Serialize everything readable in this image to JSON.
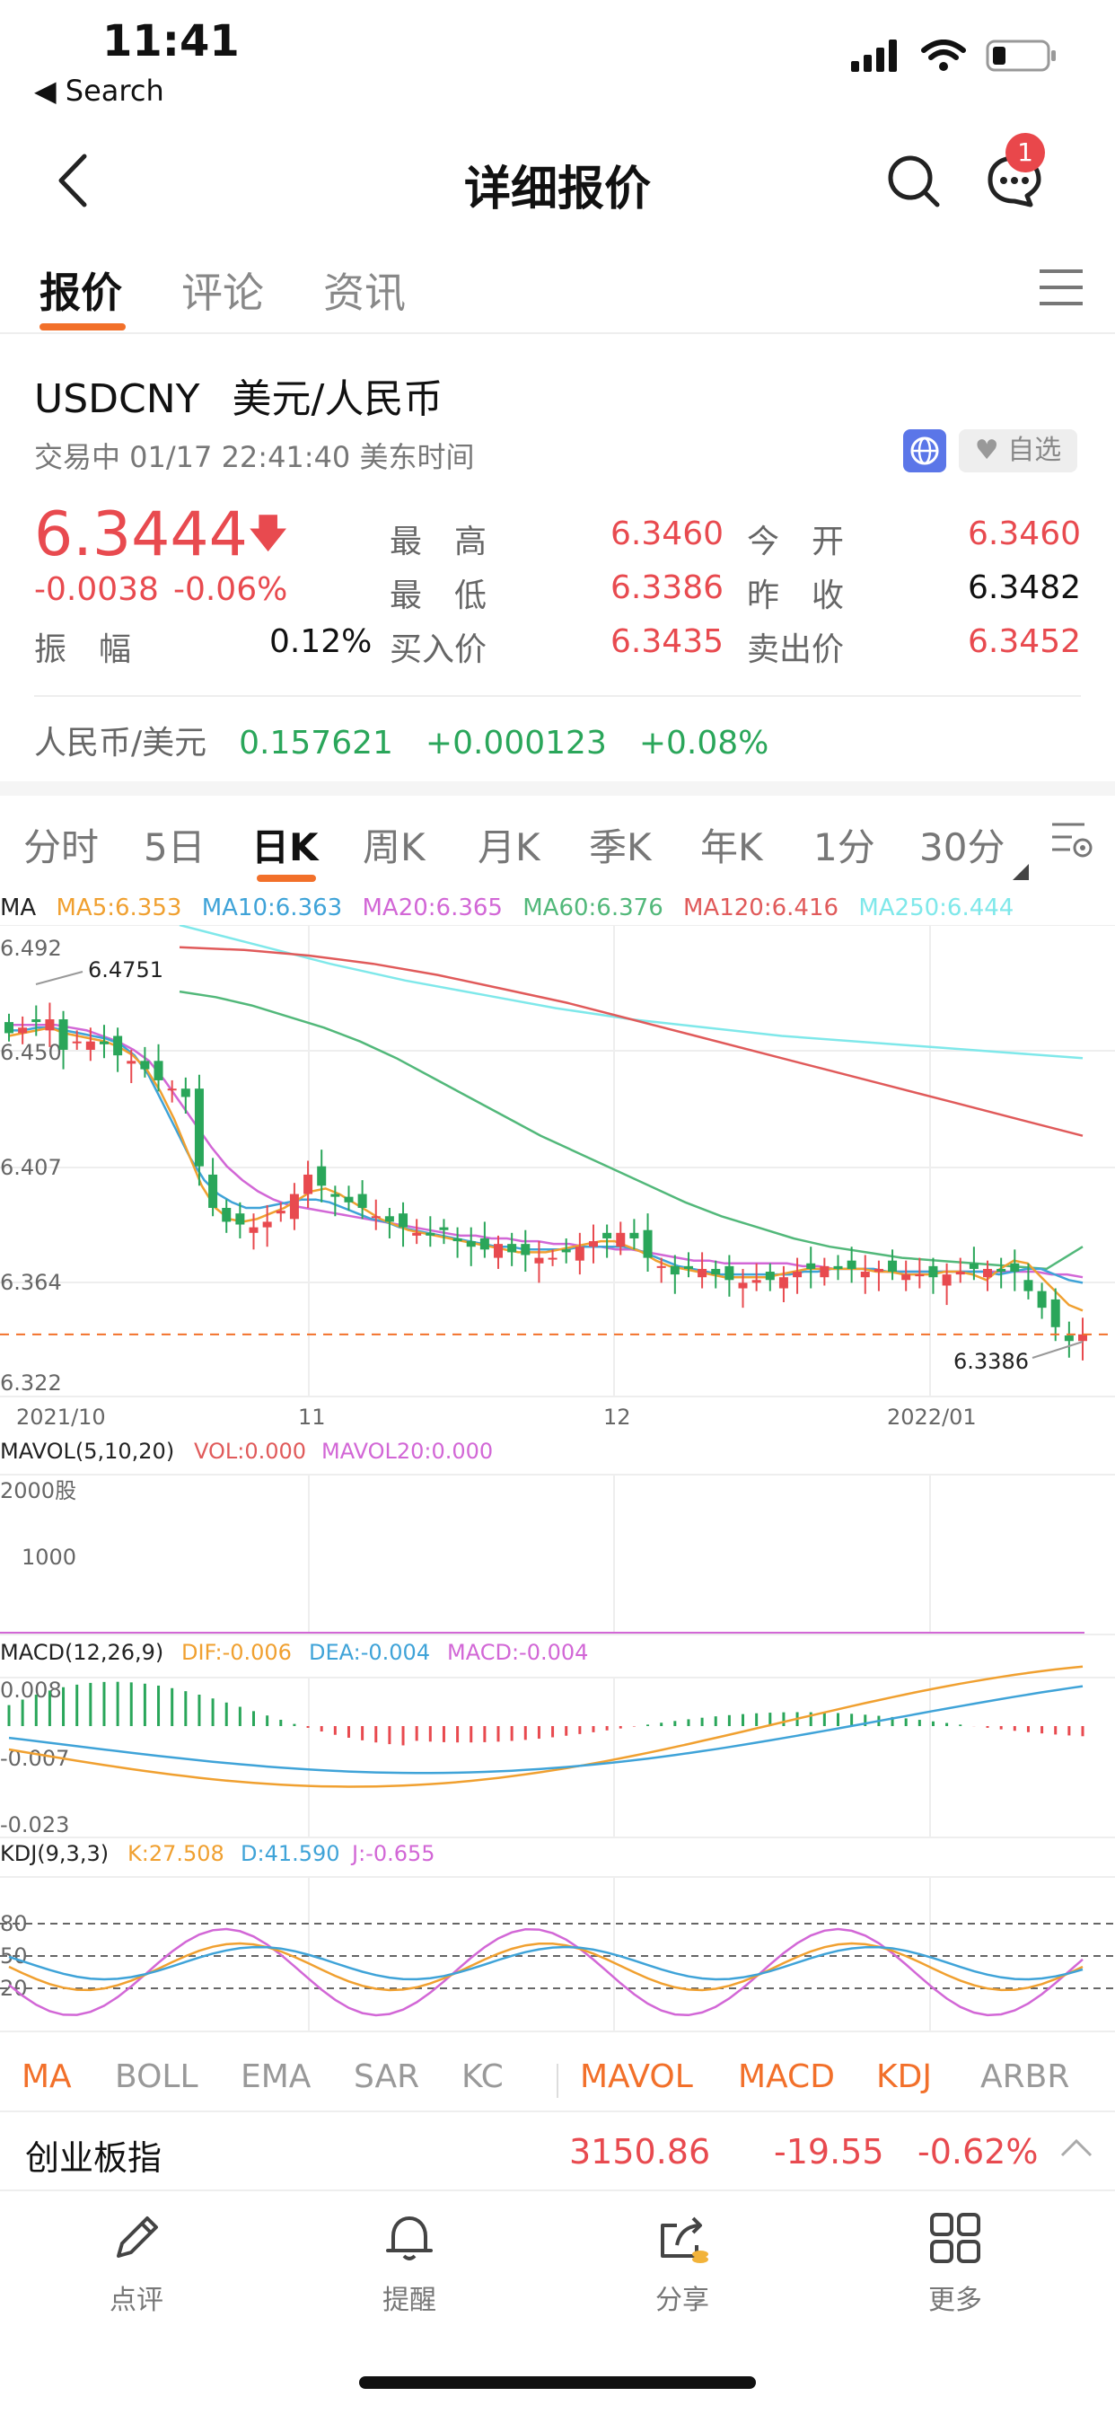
{
  "status_bar": {
    "time": "11:41",
    "back_label": "◀ Search"
  },
  "nav": {
    "title": "详细报价",
    "badge_count": "1"
  },
  "tabs": [
    {
      "label": "报价",
      "active": true
    },
    {
      "label": "评论",
      "active": false
    },
    {
      "label": "资讯",
      "active": false
    }
  ],
  "quote": {
    "symbol": "USDCNY",
    "name": "美元/人民币",
    "status": "交易中 01/17 22:41:40 美东时间",
    "favorite_label": "自选",
    "price": "6.3444",
    "change": "-0.0038",
    "change_pct": "-0.06%",
    "amplitude_label": "振　幅",
    "amplitude": "0.12%",
    "high_label": "最　高",
    "high": "6.3460",
    "low_label": "最　低",
    "low": "6.3386",
    "bid_label": "买入价",
    "bid": "6.3435",
    "open_label": "今　开",
    "open": "6.3460",
    "prev_close_label": "昨　收",
    "prev_close": "6.3482",
    "ask_label": "卖出价",
    "ask": "6.3452"
  },
  "cross_rate": {
    "label": "人民币/美元",
    "value": "0.157621",
    "change": "+0.000123",
    "change_pct": "+0.08%"
  },
  "chart_tabs": [
    {
      "label": "分时",
      "active": false
    },
    {
      "label": "5日",
      "active": false
    },
    {
      "label": "日K",
      "active": true
    },
    {
      "label": "周K",
      "active": false
    },
    {
      "label": "月K",
      "active": false
    },
    {
      "label": "季K",
      "active": false
    },
    {
      "label": "年K",
      "active": false
    },
    {
      "label": "1分",
      "active": false
    },
    {
      "label": "30分",
      "active": false
    }
  ],
  "ma_legend": {
    "label": "MA",
    "ma5": "MA5:6.353",
    "ma10": "MA10:6.363",
    "ma20": "MA20:6.365",
    "ma60": "MA60:6.376",
    "ma120": "MA120:6.416",
    "ma250": "MA250:6.444"
  },
  "colors": {
    "up": "#e84a4f",
    "down": "#2aa65a",
    "ma5": "#f0a030",
    "ma10": "#3fa3d8",
    "ma20": "#d267d6",
    "ma60": "#52b87a",
    "ma120": "#e05a5a",
    "ma250": "#7fe8ea",
    "accent": "#f2702a"
  },
  "chart_data": {
    "type": "candlestick",
    "x_ticks": [
      "2021/10",
      "11",
      "12",
      "2022/01"
    ],
    "y_ticks": [
      "6.492",
      "6.450",
      "6.407",
      "6.364",
      "6.322"
    ],
    "ylim": [
      6.322,
      6.492
    ],
    "max_label": "6.4751",
    "min_label": "6.3386",
    "current_price": 6.3444,
    "closes": [
      6.453,
      6.455,
      6.457,
      6.458,
      6.447,
      6.45,
      6.45,
      6.449,
      6.445,
      6.443,
      6.44,
      6.436,
      6.433,
      6.43,
      6.405,
      6.39,
      6.385,
      6.384,
      6.383,
      6.385,
      6.389,
      6.395,
      6.402,
      6.398,
      6.394,
      6.392,
      6.39,
      6.387,
      6.385,
      6.383,
      6.381,
      6.38,
      6.382,
      6.378,
      6.376,
      6.375,
      6.377,
      6.374,
      6.373,
      6.372,
      6.372,
      6.374,
      6.376,
      6.378,
      6.379,
      6.381,
      6.379,
      6.372,
      6.369,
      6.366,
      6.368,
      6.368,
      6.366,
      6.364,
      6.363,
      6.364,
      6.364,
      6.365,
      6.367,
      6.368,
      6.369,
      6.368,
      6.368,
      6.367,
      6.368,
      6.367,
      6.366,
      6.366,
      6.365,
      6.366,
      6.367,
      6.368,
      6.368,
      6.367,
      6.367,
      6.36,
      6.354,
      6.347,
      6.342,
      6.3444
    ],
    "ma5": [
      6.452,
      6.453,
      6.454,
      6.455,
      6.453,
      6.452,
      6.451,
      6.45,
      6.448,
      6.445,
      6.44,
      6.432,
      6.422,
      6.41,
      6.398,
      6.39,
      6.386,
      6.385,
      6.386,
      6.388,
      6.39,
      6.393,
      6.396,
      6.397,
      6.395,
      6.392,
      6.389,
      6.386,
      6.384,
      6.382,
      6.381,
      6.38,
      6.379,
      6.378,
      6.377,
      6.376,
      6.375,
      6.374,
      6.374,
      6.374,
      6.375,
      6.376,
      6.377,
      6.378,
      6.378,
      6.376,
      6.374,
      6.371,
      6.369,
      6.368,
      6.367,
      6.366,
      6.365,
      6.365,
      6.365,
      6.365,
      6.366,
      6.367,
      6.368,
      6.368,
      6.368,
      6.368,
      6.368,
      6.367,
      6.367,
      6.366,
      6.366,
      6.366,
      6.367,
      6.367,
      6.366,
      6.364,
      6.368,
      6.371,
      6.37,
      6.365,
      6.36,
      6.355,
      6.353
    ],
    "ma10": [
      6.454,
      6.454,
      6.455,
      6.455,
      6.454,
      6.453,
      6.452,
      6.451,
      6.449,
      6.445,
      6.438,
      6.428,
      6.418,
      6.408,
      6.4,
      6.395,
      6.392,
      6.39,
      6.39,
      6.391,
      6.392,
      6.393,
      6.393,
      6.392,
      6.39,
      6.388,
      6.386,
      6.385,
      6.383,
      6.382,
      6.381,
      6.38,
      6.379,
      6.378,
      6.377,
      6.376,
      6.376,
      6.375,
      6.375,
      6.375,
      6.375,
      6.376,
      6.376,
      6.376,
      6.376,
      6.375,
      6.373,
      6.371,
      6.369,
      6.368,
      6.367,
      6.366,
      6.366,
      6.366,
      6.366,
      6.366,
      6.366,
      6.367,
      6.367,
      6.368,
      6.368,
      6.368,
      6.368,
      6.367,
      6.367,
      6.367,
      6.367,
      6.367,
      6.367,
      6.367,
      6.367,
      6.366,
      6.367,
      6.368,
      6.368,
      6.366,
      6.364,
      6.363
    ],
    "ma20": [
      6.456,
      6.456,
      6.456,
      6.456,
      6.455,
      6.454,
      6.452,
      6.45,
      6.447,
      6.443,
      6.436,
      6.428,
      6.42,
      6.412,
      6.405,
      6.4,
      6.396,
      6.393,
      6.391,
      6.39,
      6.389,
      6.388,
      6.387,
      6.386,
      6.385,
      6.384,
      6.383,
      6.382,
      6.381,
      6.38,
      6.38,
      6.379,
      6.379,
      6.378,
      6.378,
      6.377,
      6.377,
      6.376,
      6.376,
      6.375,
      6.375,
      6.374,
      6.373,
      6.372,
      6.371,
      6.371,
      6.37,
      6.37,
      6.37,
      6.37,
      6.37,
      6.369,
      6.369,
      6.368,
      6.368,
      6.368,
      6.367,
      6.367,
      6.367,
      6.367,
      6.367,
      6.367,
      6.367,
      6.367,
      6.367,
      6.367,
      6.367,
      6.366,
      6.366,
      6.365
    ],
    "ma60": [
      6.468,
      6.466,
      6.463,
      6.459,
      6.455,
      6.45,
      6.444,
      6.437,
      6.43,
      6.423,
      6.416,
      6.41,
      6.404,
      6.398,
      6.392,
      6.387,
      6.383,
      6.379,
      6.376,
      6.374,
      6.372,
      6.371,
      6.37,
      6.369,
      6.368,
      6.376
    ],
    "ma120": [
      6.484,
      6.483,
      6.481,
      6.478,
      6.474,
      6.469,
      6.464,
      6.458,
      6.452,
      6.446,
      6.44,
      6.434,
      6.428,
      6.422,
      6.416
    ],
    "ma250": [
      6.492,
      6.485,
      6.478,
      6.472,
      6.467,
      6.462,
      6.458,
      6.455,
      6.452,
      6.45,
      6.448,
      6.446,
      6.444
    ],
    "subcharts": [
      {
        "name": "MAVOL",
        "params": "MAVOL(5,10,20)",
        "vol": "VOL:0.000",
        "mavol20": "MAVOL20:0.000",
        "y_ticks": [
          "2000股",
          "1000"
        ]
      },
      {
        "name": "MACD",
        "params": "MACD(12,26,9)",
        "dif": "DIF:-0.006",
        "dea": "DEA:-0.004",
        "macd": "MACD:-0.004",
        "y_ticks": [
          "0.008",
          "-0.007",
          "-0.023"
        ]
      },
      {
        "name": "KDJ",
        "params": "KDJ(9,3,3)",
        "k": "K:27.508",
        "d": "D:41.590",
        "j": "J:-0.655",
        "y_ticks": [
          "80",
          "50",
          "20"
        ]
      }
    ]
  },
  "indicator_tabs": [
    {
      "label": "MA",
      "active": true
    },
    {
      "label": "BOLL",
      "active": false
    },
    {
      "label": "EMA",
      "active": false
    },
    {
      "label": "SAR",
      "active": false
    },
    {
      "label": "KC",
      "active": false
    },
    {
      "label": "MAVOL",
      "active": true
    },
    {
      "label": "MACD",
      "active": true
    },
    {
      "label": "KDJ",
      "active": true
    },
    {
      "label": "ARBR",
      "active": false
    }
  ],
  "bottom_quote": {
    "name": "创业板指",
    "value": "3150.86",
    "change": "-19.55",
    "change_pct": "-0.62%"
  },
  "toolbar": [
    {
      "label": "点评",
      "icon": "pen-icon"
    },
    {
      "label": "提醒",
      "icon": "bell-icon"
    },
    {
      "label": "分享",
      "icon": "share-icon"
    },
    {
      "label": "更多",
      "icon": "grid-icon"
    }
  ]
}
